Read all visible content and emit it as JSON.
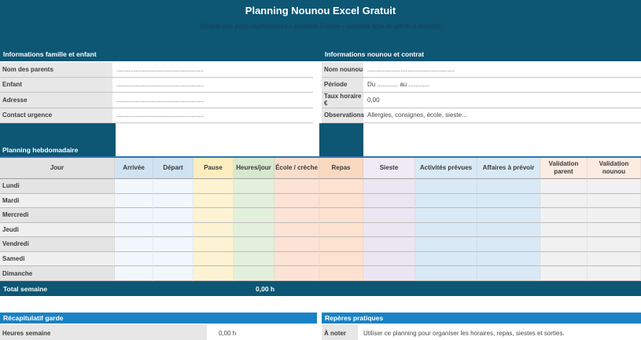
{
  "banner": {
    "title": "Planning Nounou Excel Gratuit",
    "subtitle": "Modèle one page multicouleurs – contexte France – semaine type de garde à domicile"
  },
  "family_section": {
    "title": "Informations famille et enfant",
    "rows": [
      {
        "label": "Nom des parents",
        "value": ".................................................."
      },
      {
        "label": "Enfant",
        "value": ".................................................."
      },
      {
        "label": "Adresse",
        "value": ".................................................."
      },
      {
        "label": "Contact urgence",
        "value": ".................................................."
      }
    ]
  },
  "nounou_section": {
    "title": "Informations nounou et contrat",
    "rows": [
      {
        "label": "Nom nounou",
        "value": ".................................................."
      },
      {
        "label": "Période",
        "value": "Du ............ au ............"
      },
      {
        "label": "Taux horaire €",
        "value": "0,00"
      },
      {
        "label": "Observations",
        "value": "Allergies, consignes, école, sieste..."
      }
    ]
  },
  "planning": {
    "title": "Planning hebdomadaire",
    "columns": [
      {
        "label": "Jour",
        "header_bg": "#e2e2e2",
        "body_bg": ""
      },
      {
        "label": "Arrivée",
        "header_bg": "#cfe3f3",
        "body_bg": "#f2f7fd"
      },
      {
        "label": "Départ",
        "header_bg": "#cfe3f3",
        "body_bg": "#f2f7fd"
      },
      {
        "label": "Pause",
        "header_bg": "#fdedbe",
        "body_bg": "#fdf3d2"
      },
      {
        "label": "Heures/jour",
        "header_bg": "#d6e9ce",
        "body_bg": "#e3f0dc"
      },
      {
        "label": "École / crèche",
        "header_bg": "#fbddca",
        "body_bg": "#fce3d5"
      },
      {
        "label": "Repas",
        "header_bg": "#fad9c1",
        "body_bg": "#fde3cf"
      },
      {
        "label": "Sieste",
        "header_bg": "#efeaf4",
        "body_bg": "#ece6f2"
      },
      {
        "label": "Activités prévues",
        "header_bg": "#d9eaf6",
        "body_bg": "#d9eaf6"
      },
      {
        "label": "Affaires à prévoir",
        "header_bg": "#d9eaf6",
        "body_bg": "#d9eaf6"
      },
      {
        "label": "Validation parent",
        "header_bg": "#fcebe1",
        "body_bg": "#f1f1f1"
      },
      {
        "label": "Validation nounou",
        "header_bg": "#fcebe1",
        "body_bg": "#f1f1f1"
      }
    ],
    "days": [
      "Lundi",
      "Mardi",
      "Mercredi",
      "Jeudi",
      "Vendredi",
      "Samedi",
      "Dimanche"
    ],
    "total_label": "Total semaine",
    "total_value": "0,00 h"
  },
  "recap_section": {
    "title": "Récapitulatif garde",
    "rows": [
      {
        "label": "Heures semaine",
        "value": "0,00 h"
      }
    ]
  },
  "tips_section": {
    "title": "Repères pratiques",
    "rows": [
      {
        "label": "À noter",
        "value": "Utiliser ce planning pour organiser les horaires, repas, siestes et sorties."
      }
    ]
  },
  "colors": {
    "banner_blue": "#0d5674",
    "section_header_blue": "#1a82c4",
    "table_top_border_blue": "#2e74b5",
    "label_cell_gray": "#e7e7e7",
    "gridline_gray": "#bdbdbd"
  }
}
